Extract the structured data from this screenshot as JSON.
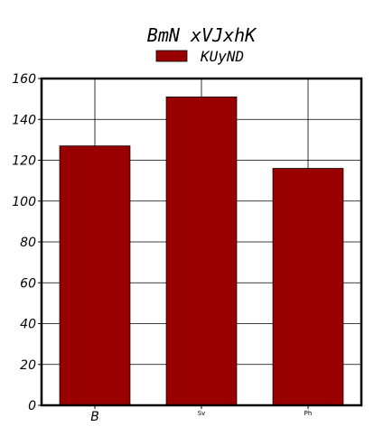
{
  "chart_data": {
    "type": "bar",
    "title": "BmN  xVJxhK",
    "categories": [
      "B",
      "Sv",
      "Ph"
    ],
    "series": [
      {
        "name": "KUyND",
        "values": [
          127,
          151,
          116
        ],
        "color": "#990000"
      }
    ],
    "ylim": [
      0,
      160
    ],
    "yticks": [
      0,
      20,
      40,
      60,
      80,
      100,
      120,
      140,
      160
    ],
    "grid": true,
    "legend": "top-center"
  }
}
